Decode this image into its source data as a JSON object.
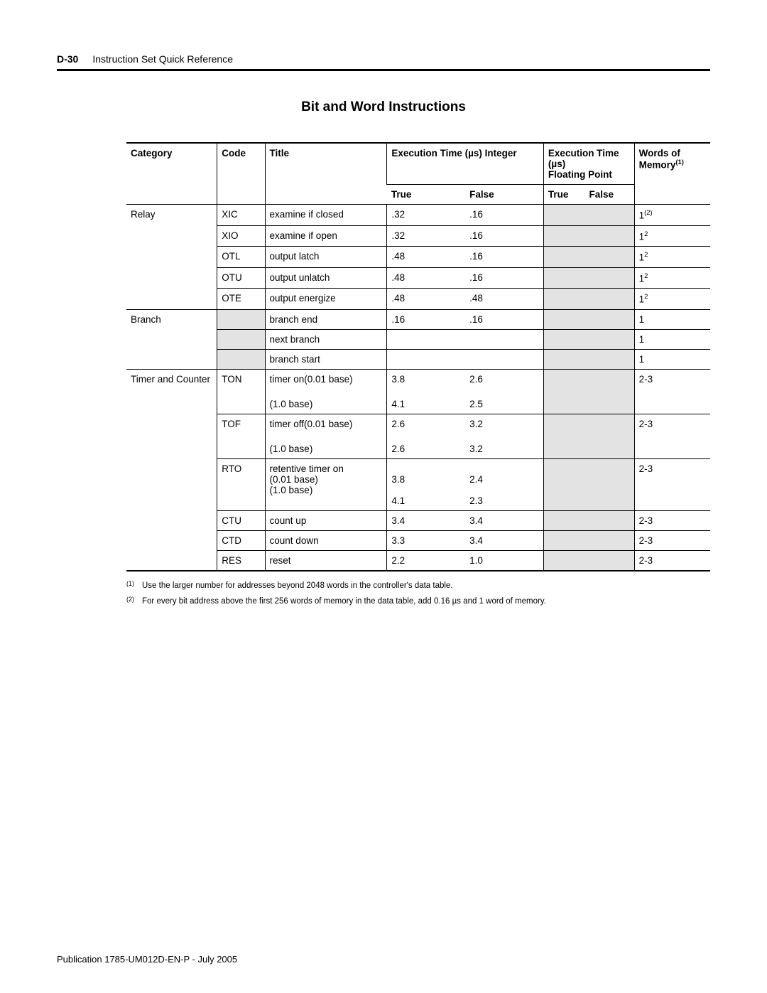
{
  "header": {
    "page_no": "D-30",
    "title": "Instruction Set Quick Reference"
  },
  "section_title": "Bit and Word Instructions",
  "table": {
    "header_top": {
      "category": "Category",
      "code": "Code",
      "title": "Title",
      "exec_int": "Execution Time (µs) Integer",
      "exec_fp_line1": "Execution Time (µs)",
      "exec_fp_line2": "Floating Point",
      "memory": "Words of Memory",
      "memory_sup": "(1)"
    },
    "header_sub": {
      "true": "True",
      "false": "False"
    },
    "rows": [
      {
        "cat": "Relay",
        "code": "XIC",
        "title": "examine if closed",
        "itrue": ".32",
        "ifalse": ".16",
        "ftrue": "",
        "ffalse": "",
        "mem": "1",
        "memsup": "(2)",
        "top": true,
        "cat_show": true,
        "code_show": true,
        "fshade": true
      },
      {
        "cat": "",
        "code": "XIO",
        "title": "examine if open",
        "itrue": ".32",
        "ifalse": ".16",
        "ftrue": "",
        "ffalse": "",
        "mem": "1",
        "memsup": "2",
        "top": true,
        "cat_show": false,
        "code_show": true,
        "fshade": true
      },
      {
        "cat": "",
        "code": "OTL",
        "title": "output latch",
        "itrue": ".48",
        "ifalse": ".16",
        "ftrue": "",
        "ffalse": "",
        "mem": "1",
        "memsup": "2",
        "top": true,
        "cat_show": false,
        "code_show": true,
        "fshade": true
      },
      {
        "cat": "",
        "code": "OTU",
        "title": "output unlatch",
        "itrue": ".48",
        "ifalse": ".16",
        "ftrue": "",
        "ffalse": "",
        "mem": "1",
        "memsup": "2",
        "top": true,
        "cat_show": false,
        "code_show": true,
        "fshade": true
      },
      {
        "cat": "",
        "code": "OTE",
        "title": "output energize",
        "itrue": ".48",
        "ifalse": ".48",
        "ftrue": "",
        "ffalse": "",
        "mem": "1",
        "memsup": "2",
        "top": true,
        "cat_show": false,
        "code_show": true,
        "fshade": true
      },
      {
        "cat": "Branch",
        "code": "",
        "title": "branch end",
        "itrue": ".16",
        "ifalse": ".16",
        "ftrue": "",
        "ffalse": "",
        "mem": "1",
        "memsup": "",
        "top": true,
        "cat_show": true,
        "code_show": true,
        "fshade": true,
        "code_shade": true
      },
      {
        "cat": "",
        "code": "",
        "title": "next branch",
        "itrue": "",
        "ifalse": "",
        "ftrue": "",
        "ffalse": "",
        "mem": "1",
        "memsup": "",
        "top": true,
        "cat_show": false,
        "code_show": true,
        "fshade": true,
        "code_shade": true
      },
      {
        "cat": "",
        "code": "",
        "title": "branch start",
        "itrue": "",
        "ifalse": "",
        "ftrue": "",
        "ffalse": "",
        "mem": "1",
        "memsup": "",
        "top": true,
        "cat_show": false,
        "code_show": true,
        "fshade": true,
        "code_shade": true
      },
      {
        "cat": "Timer and Counter",
        "code": "TON",
        "title": "timer on(0.01 base)",
        "itrue": "3.8",
        "ifalse": "2.6",
        "ftrue": "",
        "ffalse": "",
        "mem": "2-3",
        "memsup": "",
        "top": true,
        "cat_show": true,
        "code_show": true,
        "fshade": true
      },
      {
        "cat": "",
        "code": "",
        "title": "(1.0 base)",
        "itrue": "4.1",
        "ifalse": "2.5",
        "ftrue": "",
        "ffalse": "",
        "mem": "",
        "memsup": "",
        "top": false,
        "cat_show": false,
        "code_show": false,
        "fshade": true,
        "pad": true
      },
      {
        "cat": "",
        "code": "TOF",
        "title": "timer off(0.01 base)",
        "itrue": "2.6",
        "ifalse": "3.2",
        "ftrue": "",
        "ffalse": "",
        "mem": "2-3",
        "memsup": "",
        "top": true,
        "cat_show": false,
        "code_show": true,
        "fshade": true
      },
      {
        "cat": "",
        "code": "",
        "title": "(1.0 base)",
        "itrue": "2.6",
        "ifalse": "3.2",
        "ftrue": "",
        "ffalse": "",
        "mem": "",
        "memsup": "",
        "top": false,
        "cat_show": false,
        "code_show": false,
        "fshade": true,
        "pad": true
      },
      {
        "cat": "",
        "code": "RTO",
        "title": "retentive timer on\n(0.01 base)\n(1.0 base)",
        "itrue": "\n3.8\n\n4.1",
        "ifalse": "\n2.4\n\n2.3",
        "ftrue": "",
        "ffalse": "",
        "mem": "2-3",
        "memsup": "",
        "top": true,
        "cat_show": false,
        "code_show": true,
        "fshade": true,
        "multiline": true
      },
      {
        "cat": "",
        "code": "CTU",
        "title": "count up",
        "itrue": "3.4",
        "ifalse": "3.4",
        "ftrue": "",
        "ffalse": "",
        "mem": "2-3",
        "memsup": "",
        "top": true,
        "cat_show": false,
        "code_show": true,
        "fshade": true
      },
      {
        "cat": "",
        "code": "CTD",
        "title": "count down",
        "itrue": "3.3",
        "ifalse": "3.4",
        "ftrue": "",
        "ffalse": "",
        "mem": "2-3",
        "memsup": "",
        "top": true,
        "cat_show": false,
        "code_show": true,
        "fshade": true
      },
      {
        "cat": "",
        "code": "RES",
        "title": "reset",
        "itrue": "2.2",
        "ifalse": "1.0",
        "ftrue": "",
        "ffalse": "",
        "mem": "2-3",
        "memsup": "",
        "top": true,
        "cat_show": false,
        "code_show": true,
        "fshade": true
      }
    ]
  },
  "footnotes": [
    {
      "num": "(1)",
      "text": "Use the larger number for addresses beyond 2048 words in the controller's data table."
    },
    {
      "num": "(2)",
      "text": "For every bit address above the first 256 words of memory in the data table, add 0.16 µs and 1 word of memory."
    }
  ],
  "publication": "Publication 1785-UM012D-EN-P - July 2005"
}
